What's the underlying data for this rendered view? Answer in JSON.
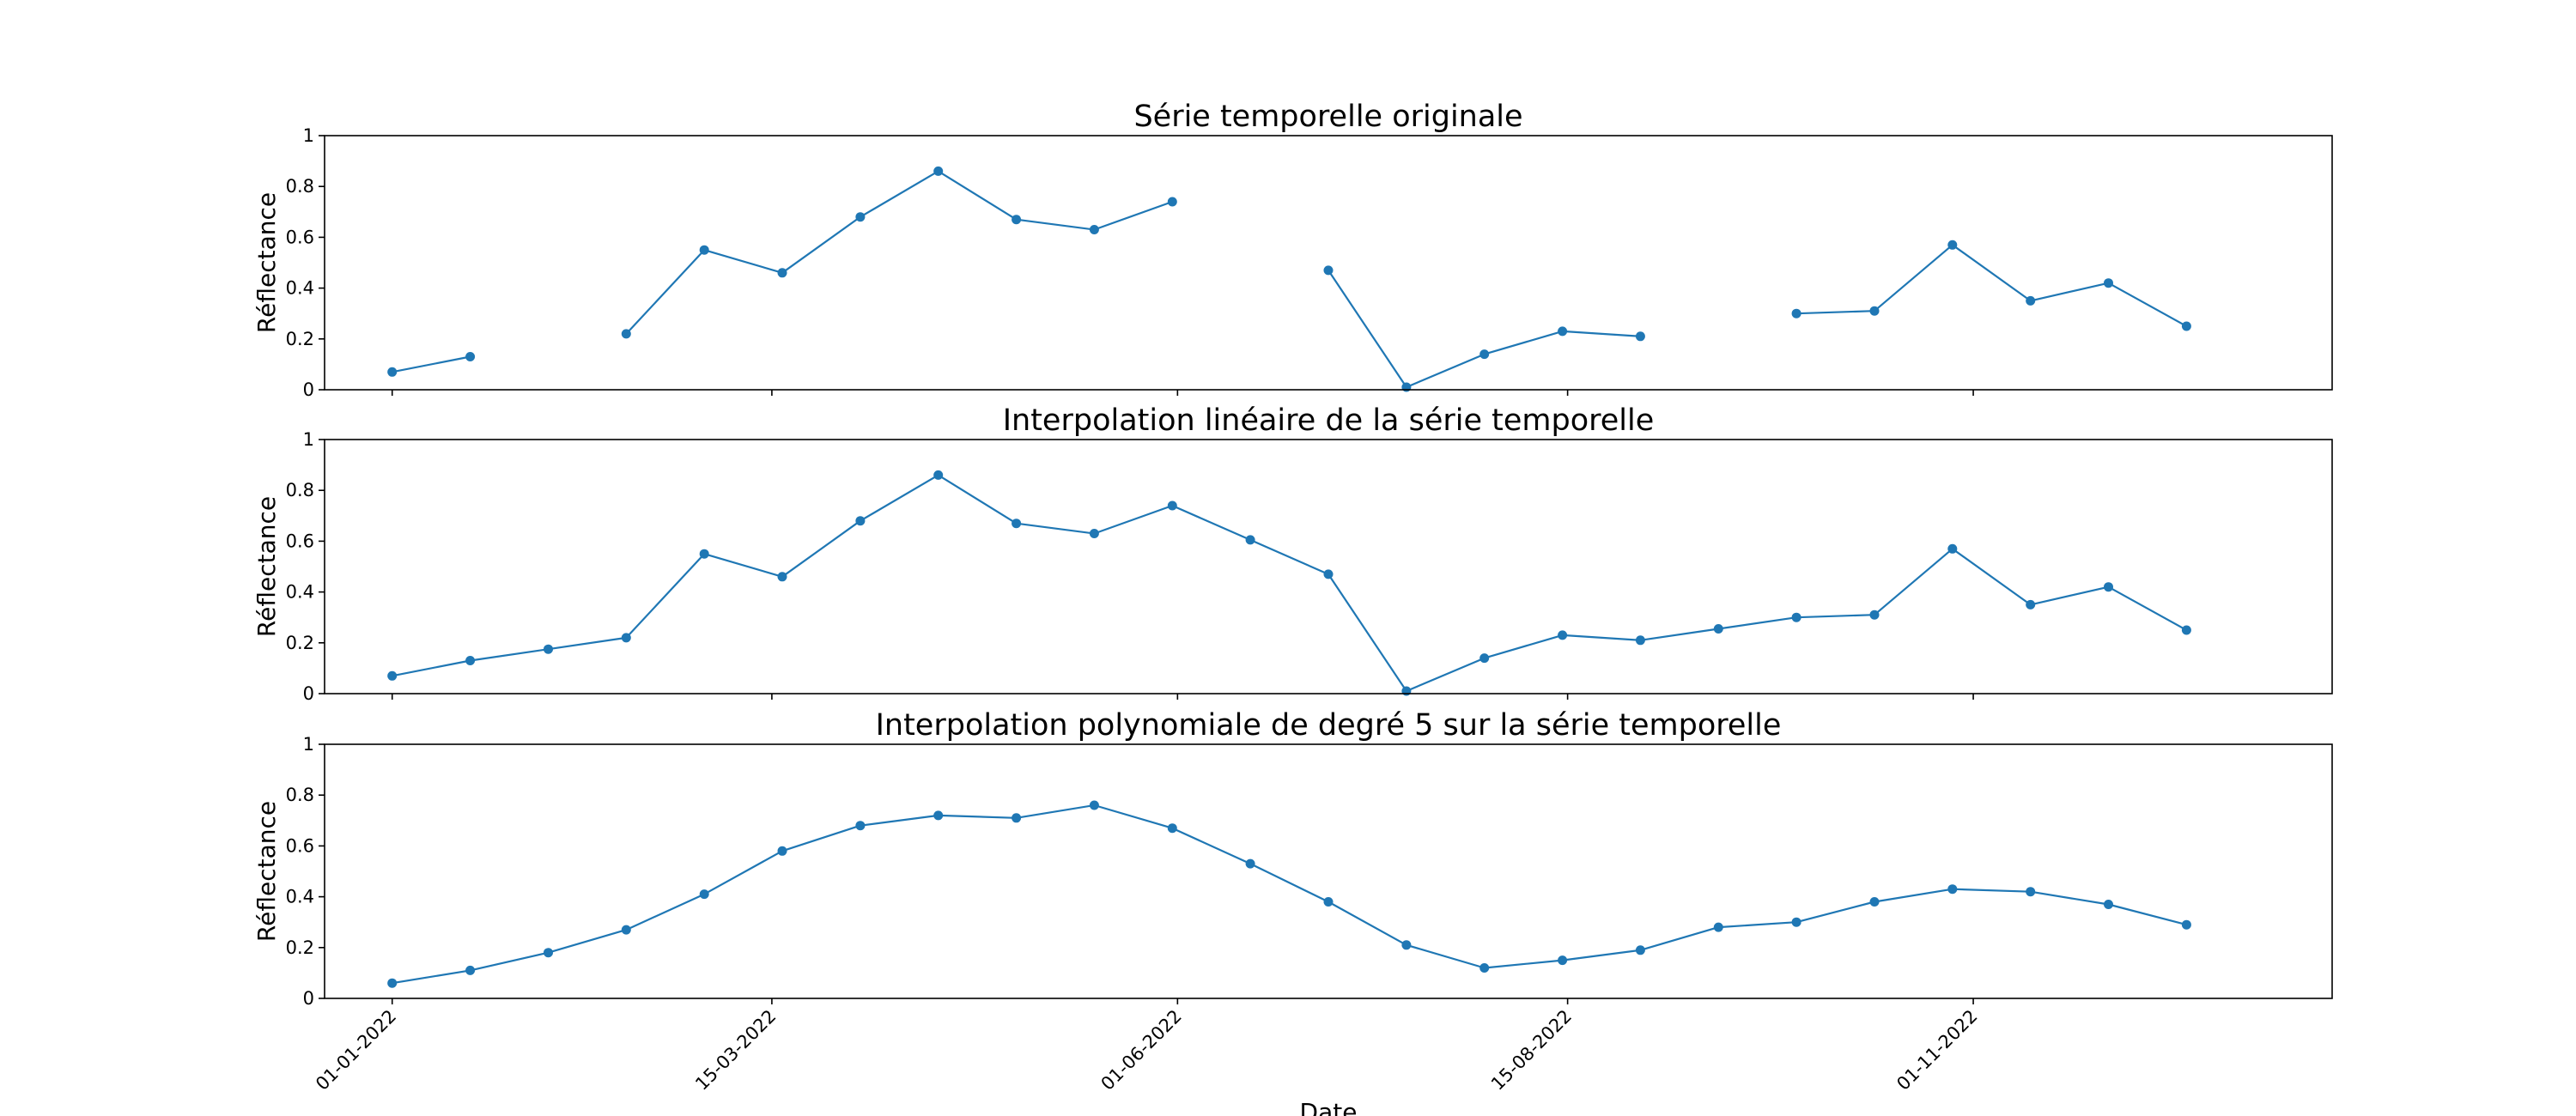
{
  "chart_data": [
    {
      "type": "line",
      "title": "Série temporelle originale",
      "xlabel": "",
      "ylabel": "Réflectance",
      "ylim": [
        0,
        1
      ],
      "yticks": [
        "0",
        "0.2",
        "0.4",
        "0.6",
        "0.8",
        "1"
      ],
      "x_tick_labels": [
        "",
        "",
        "",
        "",
        ""
      ],
      "xlim": [
        "2021-12-19",
        "2023-01-09"
      ],
      "grid": false,
      "x": [
        "2022-01-01",
        "2022-01-16",
        "2022-01-31",
        "2022-02-15",
        "2022-03-02",
        "2022-03-17",
        "2022-04-01",
        "2022-04-16",
        "2022-05-01",
        "2022-05-16",
        "2022-05-31",
        "2022-06-15",
        "2022-06-30",
        "2022-07-15",
        "2022-07-30",
        "2022-08-14",
        "2022-08-29",
        "2022-09-13",
        "2022-09-28",
        "2022-10-13",
        "2022-10-28",
        "2022-11-12",
        "2022-11-27",
        "2022-12-12"
      ],
      "series": [
        {
          "values": [
            0.07,
            0.13,
            null,
            0.22,
            0.55,
            0.46,
            0.68,
            0.86,
            0.67,
            0.63,
            0.74,
            null,
            0.47,
            0.01,
            0.14,
            0.23,
            0.21,
            null,
            0.3,
            0.31,
            0.57,
            0.35,
            0.42,
            0.25
          ]
        }
      ]
    },
    {
      "type": "line",
      "title": "Interpolation linéaire de la série temporelle",
      "xlabel": "",
      "ylabel": "Réflectance",
      "ylim": [
        0,
        1
      ],
      "yticks": [
        "0",
        "0.2",
        "0.4",
        "0.6",
        "0.8",
        "1"
      ],
      "x_tick_labels": [
        "",
        "",
        "",
        "",
        ""
      ],
      "xlim": [
        "2021-12-19",
        "2023-01-09"
      ],
      "grid": false,
      "x": [
        "2022-01-01",
        "2022-01-16",
        "2022-01-31",
        "2022-02-15",
        "2022-03-02",
        "2022-03-17",
        "2022-04-01",
        "2022-04-16",
        "2022-05-01",
        "2022-05-16",
        "2022-05-31",
        "2022-06-15",
        "2022-06-30",
        "2022-07-15",
        "2022-07-30",
        "2022-08-14",
        "2022-08-29",
        "2022-09-13",
        "2022-09-28",
        "2022-10-13",
        "2022-10-28",
        "2022-11-12",
        "2022-11-27",
        "2022-12-12"
      ],
      "series": [
        {
          "values": [
            0.07,
            0.13,
            0.175,
            0.22,
            0.55,
            0.46,
            0.68,
            0.86,
            0.67,
            0.63,
            0.74,
            0.605,
            0.47,
            0.01,
            0.14,
            0.23,
            0.21,
            0.255,
            0.3,
            0.31,
            0.57,
            0.35,
            0.42,
            0.25
          ]
        }
      ]
    },
    {
      "type": "line",
      "title": "Interpolation polynomiale de degré 5 sur la série temporelle",
      "xlabel": "Date",
      "ylabel": "Réflectance",
      "ylim": [
        0,
        1
      ],
      "yticks": [
        "0",
        "0.2",
        "0.4",
        "0.6",
        "0.8",
        "1"
      ],
      "x_tick_labels": [
        "01-01-2022",
        "15-03-2022",
        "01-06-2022",
        "15-08-2022",
        "01-11-2022"
      ],
      "xlim": [
        "2021-12-19",
        "2023-01-09"
      ],
      "grid": false,
      "x": [
        "2022-01-01",
        "2022-01-16",
        "2022-01-31",
        "2022-02-15",
        "2022-03-02",
        "2022-03-17",
        "2022-04-01",
        "2022-04-16",
        "2022-05-01",
        "2022-05-16",
        "2022-05-31",
        "2022-06-15",
        "2022-06-30",
        "2022-07-15",
        "2022-07-30",
        "2022-08-14",
        "2022-08-29",
        "2022-09-13",
        "2022-09-28",
        "2022-10-13",
        "2022-10-28",
        "2022-11-12",
        "2022-11-27",
        "2022-12-12"
      ],
      "series": [
        {
          "values": [
            0.06,
            0.11,
            0.18,
            0.27,
            0.41,
            0.58,
            0.68,
            0.72,
            0.71,
            0.76,
            0.67,
            0.53,
            0.38,
            0.21,
            0.12,
            0.15,
            0.19,
            0.28,
            0.3,
            0.38,
            0.43,
            0.42,
            0.37,
            0.29
          ]
        }
      ]
    }
  ],
  "x_ticks": [
    "2022-01-01",
    "2022-03-15",
    "2022-06-01",
    "2022-08-15",
    "2022-11-01"
  ],
  "colors": {
    "series": "#1f77b4",
    "axes": "#000000"
  }
}
